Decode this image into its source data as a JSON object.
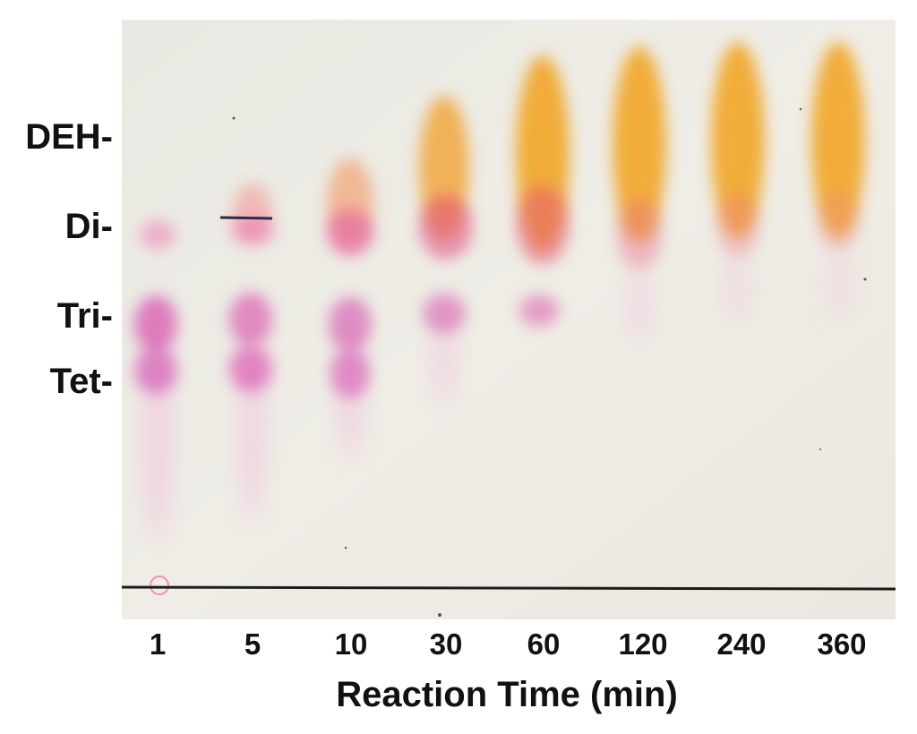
{
  "band_labels": [
    "DEH-",
    "Di-",
    "Tri-",
    "Tet-"
  ],
  "lane_labels": [
    "1",
    "5",
    "10",
    "30",
    "60",
    "120",
    "240",
    "360"
  ],
  "axis_title": "Reaction Time (min)",
  "colors": {
    "plate": "#efede6",
    "orange": "#f2a21c",
    "magenta": "#e0409f",
    "baseline": "#1b1b1b"
  }
}
